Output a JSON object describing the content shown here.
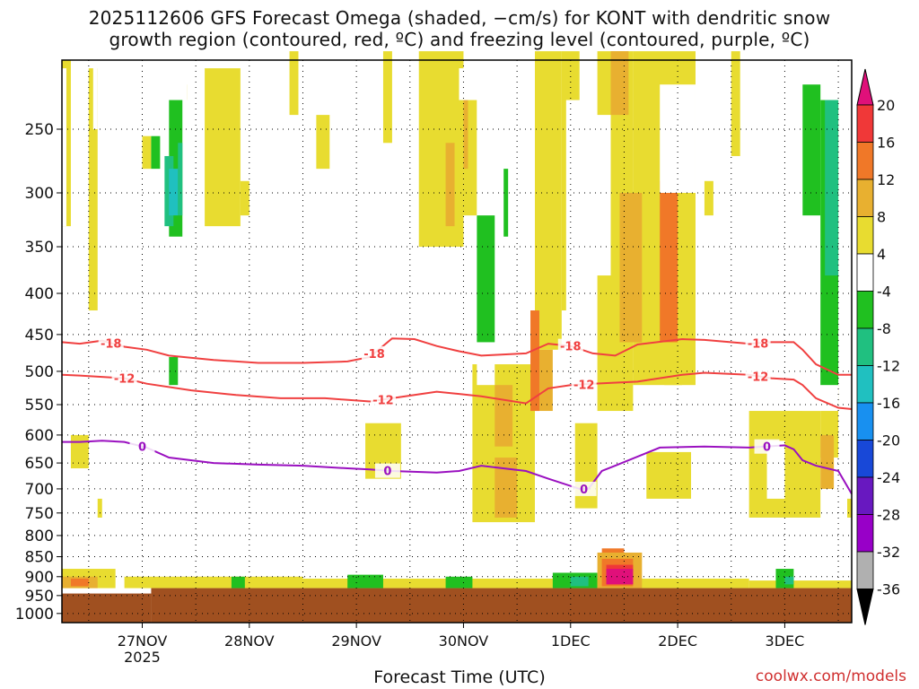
{
  "title_line1": "2025112606 GFS Forecast Omega (shaded, −cm/s) for KONT with dendritic snow",
  "title_line2": "growth region (contoured, red, ºC) and freezing level (contoured, purple, ºC)",
  "credit": "coolwx.com/models",
  "chart_data": {
    "type": "heatmap",
    "xlabel": "Forecast Time (UTC)",
    "ylabel": "",
    "x_ticks": [
      "27NOV",
      "28NOV",
      "29NOV",
      "30NOV",
      "1DEC",
      "2DEC",
      "3DEC"
    ],
    "x_tick_sub": [
      "2025",
      "",
      "",
      "",
      "",
      "",
      ""
    ],
    "x_range_hours": [
      6,
      183
    ],
    "x_tick_hours": [
      24,
      48,
      72,
      96,
      120,
      144,
      168
    ],
    "y_ticks": [
      250,
      300,
      350,
      400,
      450,
      500,
      550,
      600,
      650,
      700,
      750,
      800,
      850,
      900,
      950,
      1000
    ],
    "y_range_hPa": [
      200,
      1040
    ],
    "y_scale": "log-pressure",
    "grid": true,
    "surface_pressure_hPa": 930,
    "colorbar": {
      "labels": [
        "20",
        "16",
        "12",
        "8",
        "4",
        "-4",
        "-8",
        "-12",
        "-16",
        "-20",
        "-24",
        "-28",
        "-32",
        "-36"
      ],
      "colors": [
        "#e0107a",
        "#f03838",
        "#f07828",
        "#e8b030",
        "#e8dc30",
        "#ffffff",
        "#20c020",
        "#20c080",
        "#20c0c0",
        "#1890f0",
        "#1848d8",
        "#6818c0",
        "#9800c8",
        "#b0b0b0"
      ]
    },
    "contours": [
      {
        "label": "-18",
        "color": "#f04040",
        "points": [
          [
            6,
            460
          ],
          [
            10,
            462
          ],
          [
            15,
            458
          ],
          [
            20,
            466
          ],
          [
            25,
            470
          ],
          [
            30,
            478
          ],
          [
            40,
            484
          ],
          [
            50,
            488
          ],
          [
            60,
            488
          ],
          [
            70,
            486
          ],
          [
            75,
            480
          ],
          [
            80,
            455
          ],
          [
            85,
            456
          ],
          [
            90,
            465
          ],
          [
            95,
            472
          ],
          [
            100,
            478
          ],
          [
            110,
            475
          ],
          [
            115,
            462
          ],
          [
            120,
            465
          ],
          [
            125,
            475
          ],
          [
            130,
            478
          ],
          [
            135,
            463
          ],
          [
            145,
            456
          ],
          [
            150,
            457
          ],
          [
            160,
            462
          ],
          [
            165,
            460
          ],
          [
            170,
            460
          ],
          [
            172,
            470
          ],
          [
            175,
            490
          ],
          [
            180,
            505
          ],
          [
            183,
            505
          ]
        ],
        "label_hours": [
          17,
          76,
          120,
          162
        ]
      },
      {
        "label": "-12",
        "color": "#f04040",
        "points": [
          [
            6,
            505
          ],
          [
            10,
            506
          ],
          [
            15,
            508
          ],
          [
            20,
            510
          ],
          [
            25,
            518
          ],
          [
            35,
            528
          ],
          [
            45,
            535
          ],
          [
            55,
            540
          ],
          [
            65,
            540
          ],
          [
            75,
            545
          ],
          [
            80,
            540
          ],
          [
            90,
            530
          ],
          [
            100,
            537
          ],
          [
            110,
            548
          ],
          [
            115,
            525
          ],
          [
            120,
            520
          ],
          [
            125,
            518
          ],
          [
            135,
            515
          ],
          [
            145,
            505
          ],
          [
            150,
            502
          ],
          [
            160,
            505
          ],
          [
            165,
            510
          ],
          [
            170,
            512
          ],
          [
            172,
            520
          ],
          [
            175,
            540
          ],
          [
            180,
            555
          ],
          [
            183,
            557
          ]
        ],
        "label_hours": [
          20,
          78,
          123,
          162
        ]
      },
      {
        "label": "0",
        "color": "#9a10c0",
        "points": [
          [
            6,
            612
          ],
          [
            10,
            612
          ],
          [
            15,
            610
          ],
          [
            20,
            612
          ],
          [
            25,
            622
          ],
          [
            30,
            640
          ],
          [
            40,
            650
          ],
          [
            50,
            653
          ],
          [
            60,
            655
          ],
          [
            70,
            660
          ],
          [
            75,
            662
          ],
          [
            80,
            665
          ],
          [
            90,
            668
          ],
          [
            95,
            665
          ],
          [
            100,
            655
          ],
          [
            110,
            665
          ],
          [
            115,
            680
          ],
          [
            122,
            700
          ],
          [
            124,
            700
          ],
          [
            127,
            665
          ],
          [
            130,
            655
          ],
          [
            140,
            622
          ],
          [
            150,
            620
          ],
          [
            160,
            622
          ],
          [
            168,
            618
          ],
          [
            170,
            625
          ],
          [
            172,
            645
          ],
          [
            175,
            655
          ],
          [
            180,
            665
          ],
          [
            183,
            710
          ]
        ],
        "label_hours": [
          24,
          79,
          123,
          164
        ]
      }
    ],
    "shaded_regions": [
      {
        "value": "8",
        "approx_hours": [
          111,
          113
        ],
        "approx_hPa": [
          420,
          560
        ]
      },
      {
        "value": "12",
        "approx_hours": [
          140,
          144
        ],
        "approx_hPa": [
          290,
          460
        ]
      },
      {
        "value": "20",
        "approx_hours": [
          128,
          134
        ],
        "approx_hPa": [
          880,
          920
        ]
      },
      {
        "value": "-8",
        "approx_hours": [
          173,
          180
        ],
        "approx_hPa": [
          230,
          620
        ]
      },
      {
        "value": "-12",
        "approx_hours": [
          179,
          180
        ],
        "approx_hPa": [
          230,
          380
        ]
      }
    ]
  }
}
